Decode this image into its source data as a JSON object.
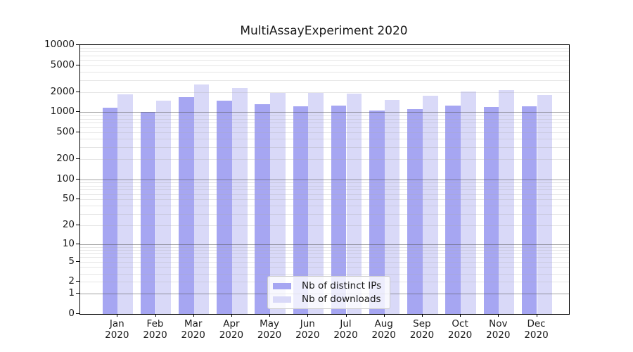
{
  "chart_data": {
    "type": "bar",
    "title": "MultiAssayExperiment 2020",
    "categories": [
      "Jan 2020",
      "Feb 2020",
      "Mar 2020",
      "Apr 2020",
      "May 2020",
      "Jun 2020",
      "Jul 2020",
      "Aug 2020",
      "Sep 2020",
      "Oct 2020",
      "Nov 2020",
      "Dec 2020"
    ],
    "x_tick_months": [
      "Jan",
      "Feb",
      "Mar",
      "Apr",
      "May",
      "Jun",
      "Jul",
      "Aug",
      "Sep",
      "Oct",
      "Nov",
      "Dec"
    ],
    "x_tick_year": "2020",
    "series": [
      {
        "name": "Nb of distinct IPs",
        "color": "#a6a6f2",
        "values": [
          1160,
          1010,
          1660,
          1490,
          1310,
          1240,
          1250,
          1050,
          1110,
          1270,
          1210,
          1220
        ]
      },
      {
        "name": "Nb of downloads",
        "color": "#d9d9f8",
        "values": [
          1860,
          1500,
          2610,
          2270,
          1960,
          1950,
          1890,
          1540,
          1770,
          2030,
          2160,
          1820
        ]
      }
    ],
    "y_axis": {
      "scale": "log1p",
      "tick_values": [
        0,
        1,
        2,
        5,
        10,
        20,
        50,
        100,
        200,
        500,
        1000,
        2000,
        5000,
        10000
      ],
      "major_gridlines": [
        1,
        10,
        100,
        1000,
        10000
      ],
      "range": [
        0,
        10000
      ]
    },
    "legend": {
      "position": "inside-bottom-center",
      "entries": [
        "Nb of distinct IPs",
        "Nb of downloads"
      ]
    },
    "grid": true,
    "xlabel": "",
    "ylabel": ""
  },
  "colors": {
    "bar_distinct_ips": "#a6a6f2",
    "bar_downloads": "#d9d9f8",
    "grid_minor": "rgba(170,170,170,0.30)",
    "grid_major": "rgba(85,85,85,0.55)",
    "frame": "#000000",
    "legend_border": "#cccccc",
    "legend_background": "rgba(255,255,255,0.8)"
  }
}
